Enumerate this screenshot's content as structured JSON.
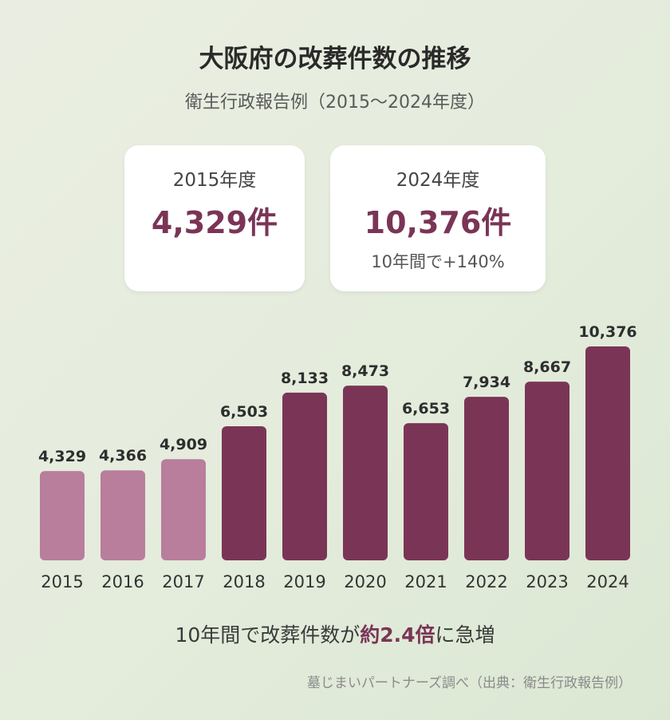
{
  "title": "大阪府の改葬件数の推移",
  "subtitle": "衛生行政報告例（2015〜2024年度）",
  "cards": [
    {
      "year": "2015年度",
      "value": "4,329件",
      "note": ""
    },
    {
      "year": "2024年度",
      "value": "10,376件",
      "note": "10年間で+140%"
    }
  ],
  "summary": {
    "prefix": "10年間で改葬件数が",
    "emphasis": "約2.4倍",
    "suffix": "に急増"
  },
  "footer": "墓じまいパートナーズ調べ（出典：衛生行政報告例）",
  "colors": {
    "bar_early": "#b87e9c",
    "bar_recent": "#7a3556",
    "accent": "#7a3556"
  },
  "chart_data": {
    "type": "bar",
    "categories": [
      "2015",
      "2016",
      "2017",
      "2018",
      "2019",
      "2020",
      "2021",
      "2022",
      "2023",
      "2024"
    ],
    "values": [
      4329,
      4366,
      4909,
      6503,
      8133,
      8473,
      6653,
      7934,
      8667,
      10376
    ],
    "value_labels": [
      "4,329",
      "4,366",
      "4,909",
      "6,503",
      "8,133",
      "8,473",
      "6,653",
      "7,934",
      "8,667",
      "10,376"
    ],
    "highlight_from_index": 3,
    "ylim": [
      0,
      10376
    ],
    "grid": false,
    "legend": "none"
  }
}
